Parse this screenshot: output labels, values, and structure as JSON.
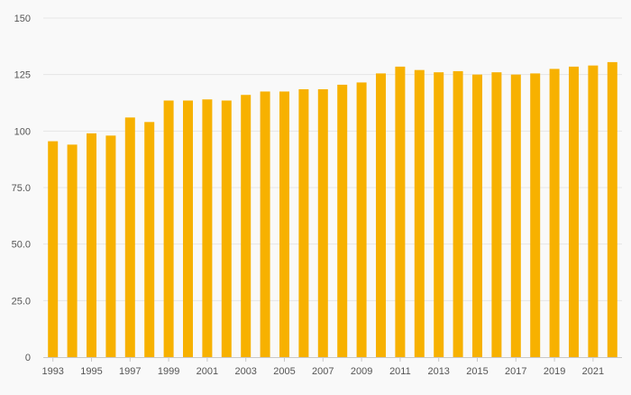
{
  "chart_data": {
    "type": "bar",
    "title": "",
    "xlabel": "",
    "ylabel": "",
    "ylim": [
      0,
      150
    ],
    "grid": true,
    "legend": "none",
    "y_ticks": [
      "0",
      "25.0",
      "50.0",
      "75.0",
      "100",
      "125",
      "150"
    ],
    "y_tick_values": [
      0,
      25,
      50,
      75,
      100,
      125,
      150
    ],
    "x_tick_labels": [
      "1993",
      "1995",
      "1997",
      "1999",
      "2001",
      "2003",
      "2005",
      "2007",
      "2009",
      "2011",
      "2013",
      "2015",
      "2017",
      "2019",
      "2021"
    ],
    "categories": [
      "1993",
      "1994",
      "1995",
      "1996",
      "1997",
      "1998",
      "1999",
      "2000",
      "2001",
      "2002",
      "2003",
      "2004",
      "2005",
      "2006",
      "2007",
      "2008",
      "2009",
      "2010",
      "2011",
      "2012",
      "2013",
      "2014",
      "2015",
      "2016",
      "2017",
      "2018",
      "2019",
      "2020",
      "2021",
      "2022"
    ],
    "values": [
      95.5,
      94,
      99,
      98,
      106,
      104,
      113.5,
      113.5,
      114,
      113.5,
      116,
      117.5,
      117.5,
      118.5,
      118.5,
      120.5,
      121.5,
      125.5,
      128.5,
      127,
      126,
      126.5,
      125,
      126,
      125,
      125.5,
      127.5,
      128.5,
      129,
      130.5
    ],
    "bar_color": "#f7b100"
  }
}
